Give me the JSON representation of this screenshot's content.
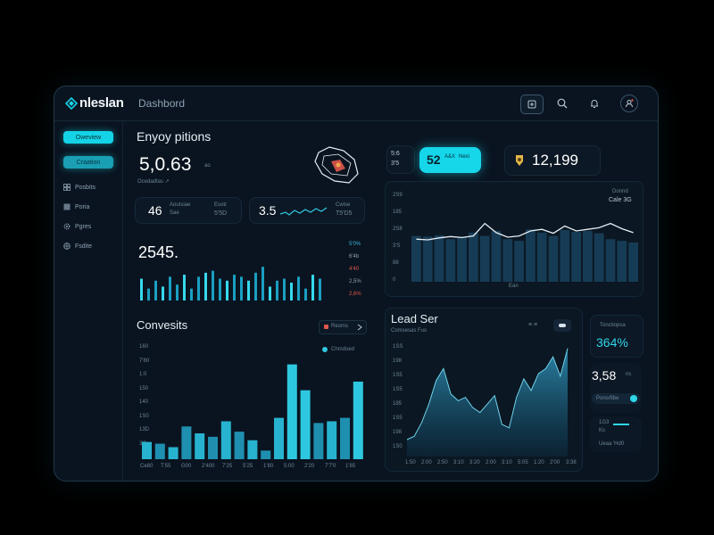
{
  "app": {
    "logo": "nleslan",
    "title": "Dashbord"
  },
  "sidebar": {
    "items": [
      {
        "label": "Oweview",
        "active": true
      },
      {
        "label": "Craation",
        "active": true
      },
      {
        "label": "Posbits",
        "icon": "grid-icon"
      },
      {
        "label": "Poria",
        "icon": "square-icon"
      },
      {
        "label": "Pgres",
        "icon": "gear-icon"
      },
      {
        "label": "Fsdite",
        "icon": "globe-icon"
      }
    ]
  },
  "engagement": {
    "title": "Enyoy pitions",
    "big_value": "5,0.63",
    "big_unit": "ao",
    "sub": "Ocedadtas ↗",
    "mini1": {
      "value": "46",
      "label1": "Aoutsiae",
      "label2": "Sae",
      "right1": "Esotr",
      "right2": "5'5D"
    },
    "mini2": {
      "value": "3.5",
      "label1": "Cwise",
      "label2": "T5'D5"
    }
  },
  "stats": {
    "pair": [
      "5:6",
      "3'5"
    ],
    "highlight": {
      "value": "52",
      "suffix": "A&X",
      "sub": "Nexi"
    },
    "users": {
      "value": "12,199"
    }
  },
  "bars_card": {
    "value": "2545.",
    "legend": [
      {
        "label": "5'0%",
        "color": "#3ab5d6"
      },
      {
        "label": "6'4b",
        "color": "#8da0ac"
      },
      {
        "label": "4'40",
        "color": "#e0574d"
      },
      {
        "label": "2,5%",
        "color": "#8da0ac"
      },
      {
        "label": "2,6%",
        "color": "#e0574d"
      }
    ],
    "chart_data": {
      "type": "bar",
      "values": [
        22,
        12,
        20,
        14,
        24,
        16,
        26,
        12,
        24,
        28,
        30,
        22,
        20,
        26,
        24,
        20,
        28,
        34,
        14,
        20,
        22,
        18,
        24,
        12,
        26,
        22
      ]
    }
  },
  "area_top": {
    "labels": [
      "Donnd",
      "Cale 3G"
    ],
    "y_ticks": [
      "2S9",
      "185",
      "2S8",
      "3'S",
      "88",
      "0"
    ],
    "x_label": "Ean",
    "chart_data": {
      "type": "bar",
      "values": [
        140,
        138,
        142,
        130,
        135,
        150,
        140,
        155,
        130,
        125,
        160,
        150,
        140,
        158,
        152,
        155,
        148,
        130,
        125,
        120
      ],
      "line": [
        130,
        128,
        134,
        138,
        135,
        140,
        178,
        150,
        136,
        140,
        155,
        160,
        148,
        170,
        155,
        160,
        165,
        178,
        162,
        150
      ]
    }
  },
  "conversions": {
    "title": "Convesits",
    "filter": "Reoms",
    "legend": "Chmdoed",
    "y_ticks": [
      "160",
      "7'80",
      "1:0",
      "150",
      "140",
      "1S0",
      "13D",
      "3'0"
    ],
    "x_labels": [
      "Ce80",
      "T:55",
      "G00",
      "2'400",
      "7'25",
      "5'25",
      "1'80",
      "5:00",
      "2'20",
      "7'7'0",
      "1'85"
    ],
    "chart_data": {
      "type": "bar",
      "values": [
        20,
        18,
        14,
        38,
        30,
        26,
        44,
        32,
        22,
        10,
        48,
        110,
        80,
        42,
        44,
        48,
        90
      ]
    }
  },
  "lead": {
    "title": "Lead Ser",
    "sub": "Comsesas Fus",
    "y_ticks": [
      "1SS",
      "198",
      "1S5",
      "1S5",
      "185",
      "1S5",
      "198",
      "1S0"
    ],
    "x_labels": [
      "1:50",
      "2:00",
      "2:50",
      "3:10",
      "3:20",
      "2:00",
      "3:10",
      "5:05",
      "1:20",
      "2'00",
      "3:38"
    ],
    "chart_data": {
      "type": "area",
      "values": [
        20,
        24,
        40,
        62,
        90,
        104,
        74,
        66,
        70,
        58,
        52,
        62,
        72,
        38,
        34,
        70,
        92,
        78,
        98,
        104,
        118,
        95,
        128
      ]
    }
  },
  "right_stats": {
    "s1": {
      "label": "Tonctiopsa",
      "value": "364%"
    },
    "s2": {
      "value": "3,58",
      "unit": "ns",
      "sub": "Ponsrfibe"
    },
    "s3": {
      "l1": "1G3",
      "l2": "Ks",
      "sub": "Ueaa 'Hd0"
    }
  }
}
